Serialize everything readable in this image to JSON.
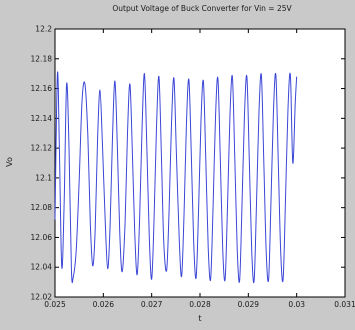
{
  "chart_data": {
    "type": "line",
    "title": "Output Voltage of Buck Converter for Vin = 25V",
    "xlabel": "t",
    "ylabel": "Vo",
    "xlim": [
      0.025,
      0.031
    ],
    "ylim": [
      12.02,
      12.2
    ],
    "x_ticks": [
      "0.025",
      "0.026",
      "0.027",
      "0.028",
      "0.029",
      "0.03",
      "0.031"
    ],
    "y_ticks": [
      "12.02",
      "12.04",
      "12.06",
      "12.08",
      "12.1",
      "12.12",
      "12.14",
      "12.16",
      "12.18",
      "12.2"
    ],
    "grid": false,
    "series_color": "#3b46d6",
    "series": [
      {
        "x": [
          0.025,
          0.02505,
          0.02509,
          0.02514,
          0.02519,
          0.02524,
          0.02529,
          0.02534,
          0.02538,
          0.02544,
          0.0255,
          0.02556,
          0.02562,
          0.02568,
          0.02573,
          0.02578,
          0.02583,
          0.02588,
          0.02593,
          0.02598,
          0.02604,
          0.02609,
          0.02614,
          0.02619,
          0.02624,
          0.02629,
          0.02634,
          0.02639,
          0.02645,
          0.0265,
          0.02655,
          0.0266,
          0.02665,
          0.0267,
          0.02675,
          0.0268,
          0.02685,
          0.0269,
          0.02695,
          0.027,
          0.02705,
          0.0271,
          0.02715,
          0.0272,
          0.02725,
          0.02731,
          0.02736,
          0.02741,
          0.02746,
          0.02751,
          0.02757,
          0.02762,
          0.02767,
          0.02772,
          0.02777,
          0.02782,
          0.02787,
          0.02792,
          0.02797,
          0.02802,
          0.02807,
          0.02812,
          0.02817,
          0.02822,
          0.02827,
          0.02832,
          0.02837,
          0.02842,
          0.02847,
          0.02852,
          0.02857,
          0.02862,
          0.02867,
          0.02872,
          0.02877,
          0.02882,
          0.02887,
          0.02892,
          0.02897,
          0.02902,
          0.02907,
          0.02912,
          0.02917,
          0.02922,
          0.02927,
          0.02932,
          0.02937,
          0.02942,
          0.02947,
          0.02952,
          0.02957,
          0.02962,
          0.02967,
          0.02972,
          0.02977,
          0.02982,
          0.02987,
          0.02992,
          0.02997,
          0.03
        ],
        "y": [
          12.072,
          12.17,
          12.121,
          12.04,
          12.084,
          12.163,
          12.12,
          12.038,
          12.034,
          12.052,
          12.098,
          12.152,
          12.163,
          12.128,
          12.07,
          12.041,
          12.064,
          12.125,
          12.159,
          12.124,
          12.07,
          12.039,
          12.068,
          12.128,
          12.165,
          12.121,
          12.063,
          12.037,
          12.07,
          12.13,
          12.163,
          12.118,
          12.063,
          12.035,
          12.072,
          12.132,
          12.17,
          12.121,
          12.061,
          12.032,
          12.073,
          12.134,
          12.168,
          12.117,
          12.057,
          12.038,
          12.078,
          12.136,
          12.167,
          12.118,
          12.059,
          12.034,
          12.076,
          12.137,
          12.166,
          12.116,
          12.056,
          12.033,
          12.078,
          12.138,
          12.165,
          12.112,
          12.053,
          12.032,
          12.08,
          12.14,
          12.167,
          12.113,
          12.052,
          12.032,
          12.082,
          12.142,
          12.168,
          12.113,
          12.052,
          12.031,
          12.083,
          12.142,
          12.168,
          12.112,
          12.051,
          12.031,
          12.084,
          12.144,
          12.169,
          12.111,
          12.05,
          12.032,
          12.086,
          12.145,
          12.169,
          12.11,
          12.05,
          12.032,
          12.087,
          12.146,
          12.169,
          12.11,
          12.15,
          12.168
        ]
      }
    ]
  }
}
